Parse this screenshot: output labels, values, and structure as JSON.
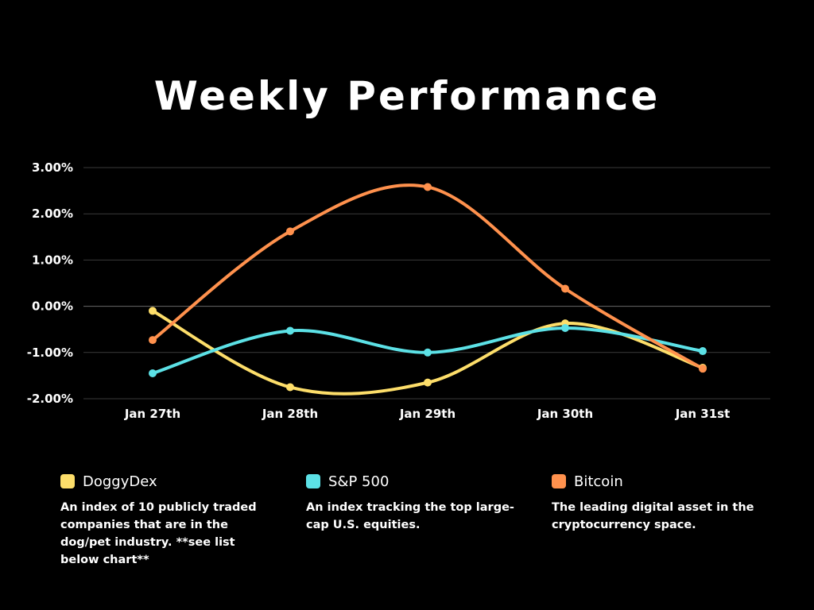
{
  "chart_data": {
    "type": "line",
    "title": "Weekly Performance",
    "categories": [
      "Jan 27th",
      "Jan 28th",
      "Jan 29th",
      "Jan 30th",
      "Jan 31st"
    ],
    "ylim": [
      -2.0,
      3.0
    ],
    "yticks": [
      "3.00%",
      "2.00%",
      "1.00%",
      "0.00%",
      "-1.00%",
      "-2.00%"
    ],
    "ytick_values": [
      3,
      2,
      1,
      0,
      -1,
      -2
    ],
    "grid": true,
    "legend_position": "bottom",
    "series": [
      {
        "name": "DoggyDex",
        "color": "#FDDE6A",
        "values": [
          -0.1,
          -1.75,
          -1.65,
          -0.37,
          -1.33
        ],
        "description": "An index of 10 publicly traded companies that are in the dog/pet industry. **see list below chart**"
      },
      {
        "name": "S&P 500",
        "color": "#5CE1E6",
        "values": [
          -1.45,
          -0.53,
          -1.0,
          -0.47,
          -0.97
        ],
        "description": "An index tracking the top large-cap U.S. equities."
      },
      {
        "name": "Bitcoin",
        "color": "#FF914D",
        "values": [
          -0.73,
          1.62,
          2.58,
          0.38,
          -1.35
        ],
        "description": "The leading digital asset in the cryptocurrency space."
      }
    ]
  }
}
